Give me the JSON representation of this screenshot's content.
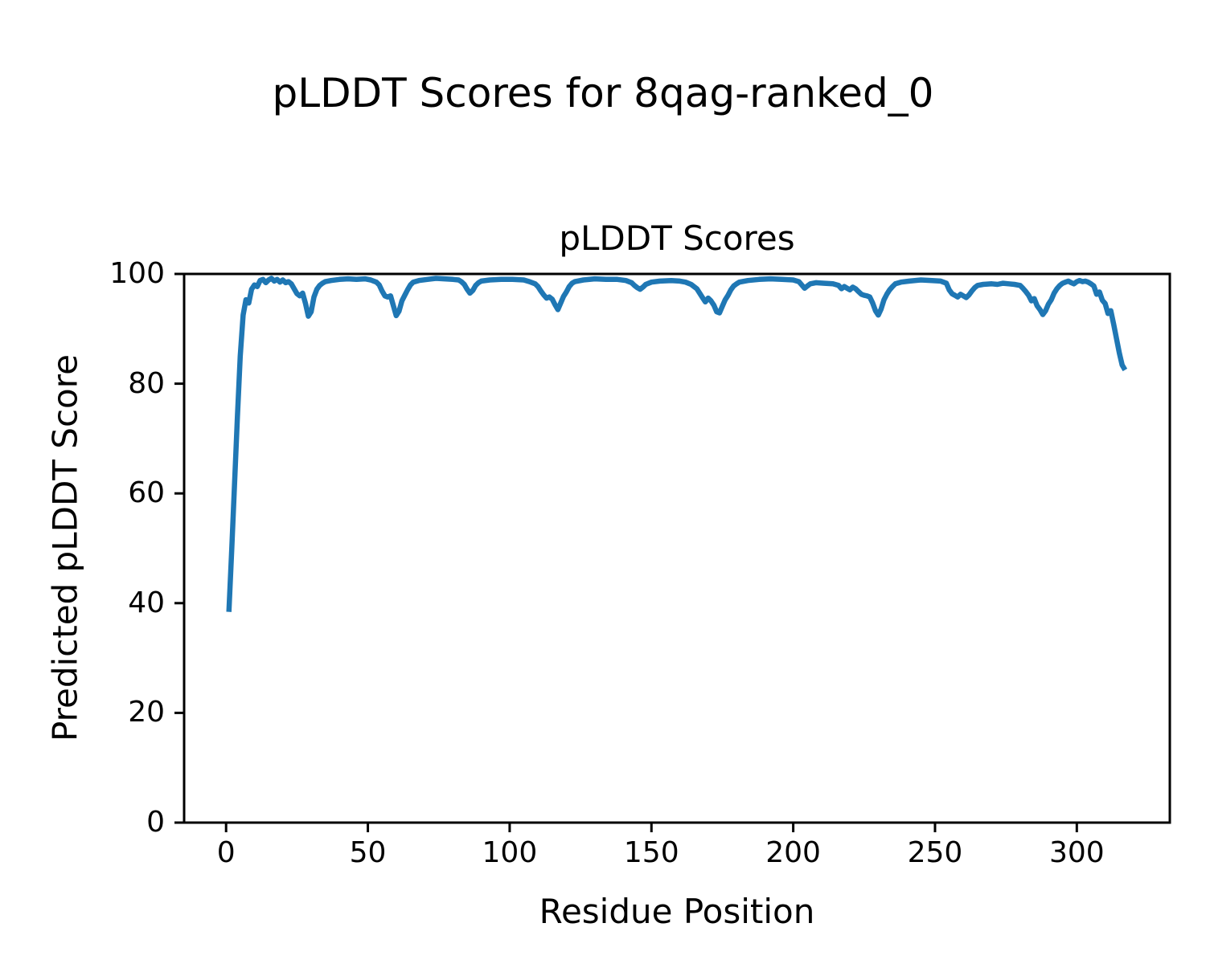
{
  "chart_data": {
    "type": "line",
    "suptitle": "pLDDT Scores for 8qag-ranked_0",
    "title": "pLDDT Scores",
    "xlabel": "Residue Position",
    "ylabel": "Predicted pLDDT Score",
    "xlim": [
      -14.8,
      332.8
    ],
    "ylim": [
      0,
      100
    ],
    "xticks": [
      0,
      50,
      100,
      150,
      200,
      250,
      300
    ],
    "yticks": [
      0,
      20,
      40,
      60,
      80,
      100
    ],
    "grid": false,
    "legend_position": "none",
    "line_color": "#1f77b4",
    "axes_color": "#000000",
    "background_color": "#ffffff",
    "series": [
      {
        "name": "pLDDT",
        "points": [
          [
            1,
            38.4
          ],
          [
            2,
            50
          ],
          [
            3,
            62
          ],
          [
            4,
            74
          ],
          [
            5,
            85
          ],
          [
            6,
            92.5
          ],
          [
            7,
            95.3
          ],
          [
            8,
            94.7
          ],
          [
            9,
            97.2
          ],
          [
            10,
            98.0
          ],
          [
            11,
            97.7
          ],
          [
            12,
            98.8
          ],
          [
            13,
            99.0
          ],
          [
            14,
            98.4
          ],
          [
            15,
            98.9
          ],
          [
            16,
            99.2
          ],
          [
            17,
            98.7
          ],
          [
            18,
            99.0
          ],
          [
            19,
            98.5
          ],
          [
            20,
            98.9
          ],
          [
            21,
            98.4
          ],
          [
            22,
            98.6
          ],
          [
            23,
            98.2
          ],
          [
            24,
            97.3
          ],
          [
            25,
            96.4
          ],
          [
            26,
            96.0
          ],
          [
            27,
            96.5
          ],
          [
            28,
            94.6
          ],
          [
            29,
            92.3
          ],
          [
            30,
            93.1
          ],
          [
            31,
            95.8
          ],
          [
            32,
            97.2
          ],
          [
            33,
            97.9
          ],
          [
            34,
            98.3
          ],
          [
            35,
            98.6
          ],
          [
            37,
            98.8
          ],
          [
            40,
            99.0
          ],
          [
            43,
            99.1
          ],
          [
            46,
            99.0
          ],
          [
            49,
            99.1
          ],
          [
            51,
            98.9
          ],
          [
            53,
            98.5
          ],
          [
            54,
            98.0
          ],
          [
            55,
            96.9
          ],
          [
            56,
            96.0
          ],
          [
            57,
            95.8
          ],
          [
            58,
            96.0
          ],
          [
            59,
            94.2
          ],
          [
            60,
            92.4
          ],
          [
            61,
            93.2
          ],
          [
            62,
            95.1
          ],
          [
            63,
            96.1
          ],
          [
            64,
            97.1
          ],
          [
            65,
            98.0
          ],
          [
            66,
            98.5
          ],
          [
            68,
            98.8
          ],
          [
            71,
            99.0
          ],
          [
            74,
            99.2
          ],
          [
            77,
            99.1
          ],
          [
            80,
            99.0
          ],
          [
            82,
            98.9
          ],
          [
            83,
            98.6
          ],
          [
            84,
            98.1
          ],
          [
            85,
            97.2
          ],
          [
            86,
            96.5
          ],
          [
            87,
            97.0
          ],
          [
            88,
            97.9
          ],
          [
            89,
            98.4
          ],
          [
            90,
            98.7
          ],
          [
            93,
            98.9
          ],
          [
            97,
            99.0
          ],
          [
            101,
            99.0
          ],
          [
            105,
            98.9
          ],
          [
            107,
            98.6
          ],
          [
            109,
            98.2
          ],
          [
            110,
            97.7
          ],
          [
            111,
            96.9
          ],
          [
            112,
            96.2
          ],
          [
            113,
            95.6
          ],
          [
            114,
            95.8
          ],
          [
            115,
            95.4
          ],
          [
            116,
            94.4
          ],
          [
            117,
            93.5
          ],
          [
            118,
            94.7
          ],
          [
            119,
            95.9
          ],
          [
            120,
            96.7
          ],
          [
            121,
            97.7
          ],
          [
            122,
            98.3
          ],
          [
            123,
            98.6
          ],
          [
            126,
            98.9
          ],
          [
            130,
            99.1
          ],
          [
            134,
            99.0
          ],
          [
            138,
            99.0
          ],
          [
            141,
            98.8
          ],
          [
            143,
            98.4
          ],
          [
            144,
            97.9
          ],
          [
            145,
            97.5
          ],
          [
            146,
            97.2
          ],
          [
            147,
            97.6
          ],
          [
            148,
            98.1
          ],
          [
            150,
            98.5
          ],
          [
            153,
            98.7
          ],
          [
            157,
            98.8
          ],
          [
            160,
            98.7
          ],
          [
            162,
            98.5
          ],
          [
            164,
            98.1
          ],
          [
            166,
            97.3
          ],
          [
            167,
            96.5
          ],
          [
            168,
            95.7
          ],
          [
            169,
            94.9
          ],
          [
            170,
            95.6
          ],
          [
            171,
            95.1
          ],
          [
            172,
            94.3
          ],
          [
            173,
            93.1
          ],
          [
            174,
            92.9
          ],
          [
            175,
            94.1
          ],
          [
            176,
            95.3
          ],
          [
            177,
            96.1
          ],
          [
            178,
            97.1
          ],
          [
            179,
            97.8
          ],
          [
            180,
            98.2
          ],
          [
            181,
            98.5
          ],
          [
            184,
            98.8
          ],
          [
            188,
            99.0
          ],
          [
            192,
            99.1
          ],
          [
            196,
            99.0
          ],
          [
            200,
            98.9
          ],
          [
            202,
            98.6
          ],
          [
            203,
            98.0
          ],
          [
            204,
            97.4
          ],
          [
            205,
            97.8
          ],
          [
            206,
            98.2
          ],
          [
            208,
            98.4
          ],
          [
            211,
            98.3
          ],
          [
            214,
            98.2
          ],
          [
            216,
            97.9
          ],
          [
            217,
            97.3
          ],
          [
            218,
            97.7
          ],
          [
            219,
            97.4
          ],
          [
            220,
            97.1
          ],
          [
            221,
            97.6
          ],
          [
            222,
            97.3
          ],
          [
            223,
            96.8
          ],
          [
            224,
            96.3
          ],
          [
            225,
            96.1
          ],
          [
            226,
            96.0
          ],
          [
            227,
            95.8
          ],
          [
            228,
            94.7
          ],
          [
            229,
            93.3
          ],
          [
            230,
            92.5
          ],
          [
            231,
            93.6
          ],
          [
            232,
            95.3
          ],
          [
            233,
            96.3
          ],
          [
            234,
            97.1
          ],
          [
            235,
            97.7
          ],
          [
            236,
            98.2
          ],
          [
            238,
            98.5
          ],
          [
            241,
            98.7
          ],
          [
            245,
            98.9
          ],
          [
            249,
            98.8
          ],
          [
            252,
            98.7
          ],
          [
            254,
            98.3
          ],
          [
            255,
            97.1
          ],
          [
            256,
            96.4
          ],
          [
            257,
            96.1
          ],
          [
            258,
            95.8
          ],
          [
            259,
            96.3
          ],
          [
            260,
            96.0
          ],
          [
            261,
            95.7
          ],
          [
            262,
            96.2
          ],
          [
            263,
            96.9
          ],
          [
            264,
            97.5
          ],
          [
            265,
            97.9
          ],
          [
            267,
            98.1
          ],
          [
            270,
            98.2
          ],
          [
            272,
            98.1
          ],
          [
            274,
            98.3
          ],
          [
            276,
            98.2
          ],
          [
            278,
            98.1
          ],
          [
            280,
            97.9
          ],
          [
            281,
            97.4
          ],
          [
            282,
            96.8
          ],
          [
            283,
            96.1
          ],
          [
            284,
            95.1
          ],
          [
            285,
            95.5
          ],
          [
            286,
            94.2
          ],
          [
            287,
            93.5
          ],
          [
            288,
            92.6
          ],
          [
            289,
            93.3
          ],
          [
            290,
            94.5
          ],
          [
            291,
            95.3
          ],
          [
            292,
            96.5
          ],
          [
            293,
            97.3
          ],
          [
            294,
            97.9
          ],
          [
            295,
            98.3
          ],
          [
            296,
            98.5
          ],
          [
            297,
            98.7
          ],
          [
            298,
            98.4
          ],
          [
            299,
            98.2
          ],
          [
            300,
            98.6
          ],
          [
            301,
            98.8
          ],
          [
            302,
            98.6
          ],
          [
            303,
            98.7
          ],
          [
            304,
            98.5
          ],
          [
            305,
            98.2
          ],
          [
            306,
            97.8
          ],
          [
            307,
            96.3
          ],
          [
            308,
            96.7
          ],
          [
            309,
            95.2
          ],
          [
            310,
            94.6
          ],
          [
            311,
            92.8
          ],
          [
            312,
            93.3
          ],
          [
            313,
            90.8
          ],
          [
            314,
            88.2
          ],
          [
            315,
            85.6
          ],
          [
            316,
            83.4
          ],
          [
            317,
            82.5
          ]
        ]
      }
    ]
  }
}
